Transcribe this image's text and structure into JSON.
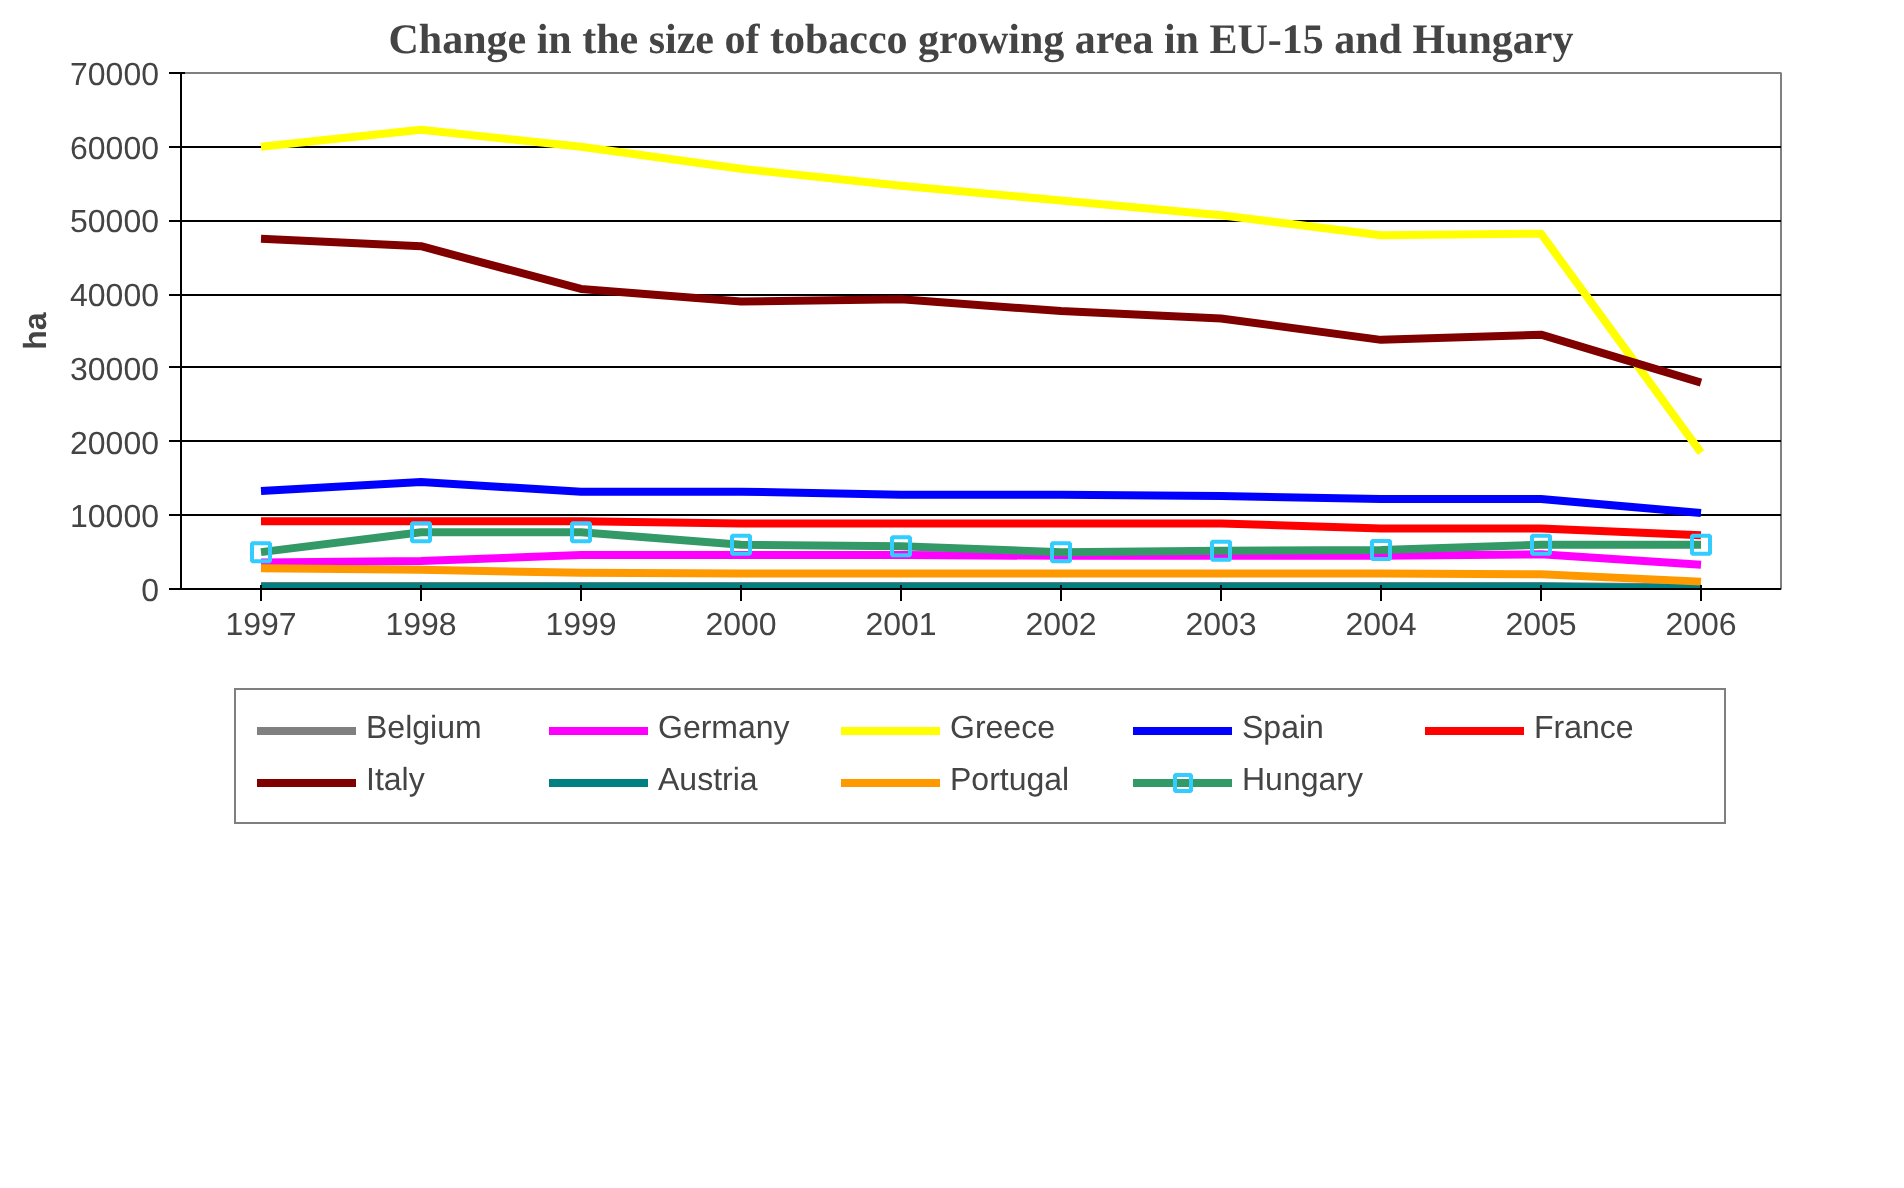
{
  "chart_data": {
    "type": "line",
    "title": "Change in the size of tobacco growing area in EU-15 and Hungary",
    "ylabel": "ha",
    "categories": [
      "1997",
      "1998",
      "1999",
      "2000",
      "2001",
      "2002",
      "2003",
      "2004",
      "2005",
      "2006"
    ],
    "ylim": [
      0,
      70000
    ],
    "yticks": [
      0,
      10000,
      20000,
      30000,
      40000,
      50000,
      60000,
      70000
    ],
    "grid": "y",
    "legend": "bottom",
    "marker": "none",
    "series": [
      {
        "name": "Belgium",
        "color": "#808080",
        "values": [
          400,
          400,
          400,
          400,
          400,
          400,
          400,
          400,
          400,
          200
        ]
      },
      {
        "name": "Germany",
        "color": "#ff00ff",
        "values": [
          3600,
          3800,
          4600,
          4600,
          4600,
          4500,
          4500,
          4500,
          4700,
          3300
        ]
      },
      {
        "name": "Greece",
        "color": "#ffff00",
        "values": [
          60000,
          62300,
          60000,
          57000,
          54700,
          52700,
          50700,
          48000,
          48200,
          18500
        ]
      },
      {
        "name": "Spain",
        "color": "#0000ff",
        "values": [
          13300,
          14500,
          13200,
          13200,
          12800,
          12800,
          12600,
          12200,
          12200,
          10300
        ]
      },
      {
        "name": "France",
        "color": "#ff0000",
        "values": [
          9200,
          9200,
          9200,
          8900,
          8900,
          8900,
          8900,
          8200,
          8200,
          7300
        ]
      },
      {
        "name": "Italy",
        "color": "#800000",
        "values": [
          47500,
          46500,
          40700,
          39000,
          39300,
          37700,
          36700,
          33800,
          34500,
          28000
        ]
      },
      {
        "name": "Austria",
        "color": "#008080",
        "values": [
          300,
          300,
          300,
          300,
          300,
          300,
          300,
          300,
          300,
          100
        ]
      },
      {
        "name": "Portugal",
        "color": "#ff9900",
        "values": [
          2800,
          2600,
          2200,
          2100,
          2100,
          2100,
          2100,
          2100,
          2000,
          1000
        ]
      },
      {
        "name": "Hungary",
        "color": "#339966",
        "marker": "square",
        "values": [
          5000,
          7700,
          7700,
          6000,
          5800,
          5000,
          5200,
          5300,
          6000,
          6000
        ]
      }
    ]
  }
}
